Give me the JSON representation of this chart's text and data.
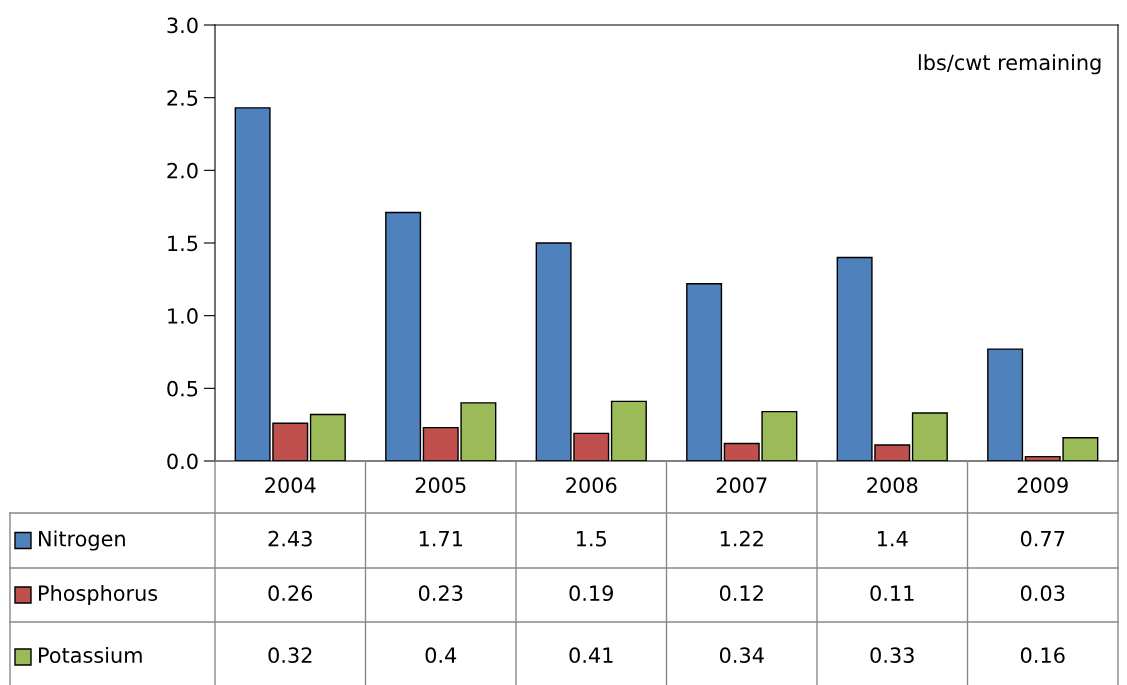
{
  "chart_data": {
    "type": "bar",
    "categories": [
      "2004",
      "2005",
      "2006",
      "2007",
      "2008",
      "2009"
    ],
    "series": [
      {
        "name": "Nitrogen",
        "color": "#4f81bd",
        "values": [
          2.43,
          1.71,
          1.5,
          1.22,
          1.4,
          0.77
        ]
      },
      {
        "name": "Phosphorus",
        "color": "#c0504d",
        "values": [
          0.26,
          0.23,
          0.19,
          0.12,
          0.11,
          0.03
        ]
      },
      {
        "name": "Potassium",
        "color": "#9bbb59",
        "values": [
          0.32,
          0.4,
          0.41,
          0.34,
          0.33,
          0.16
        ]
      }
    ],
    "ylim": [
      0,
      3.0
    ],
    "yticks": [
      {
        "value": 0,
        "label": "0.0"
      },
      {
        "value": 0.5,
        "label": "0.5"
      },
      {
        "value": 1.0,
        "label": "1.0"
      },
      {
        "value": 1.5,
        "label": "1.5"
      },
      {
        "value": 2.0,
        "label": "2.0"
      },
      {
        "value": 2.5,
        "label": "2.5"
      },
      {
        "value": 3.0,
        "label": "3.0"
      }
    ],
    "annotations": [
      "lbs/cwt remaining"
    ],
    "data_labels": true,
    "legend": "bottom left",
    "grid": false
  }
}
